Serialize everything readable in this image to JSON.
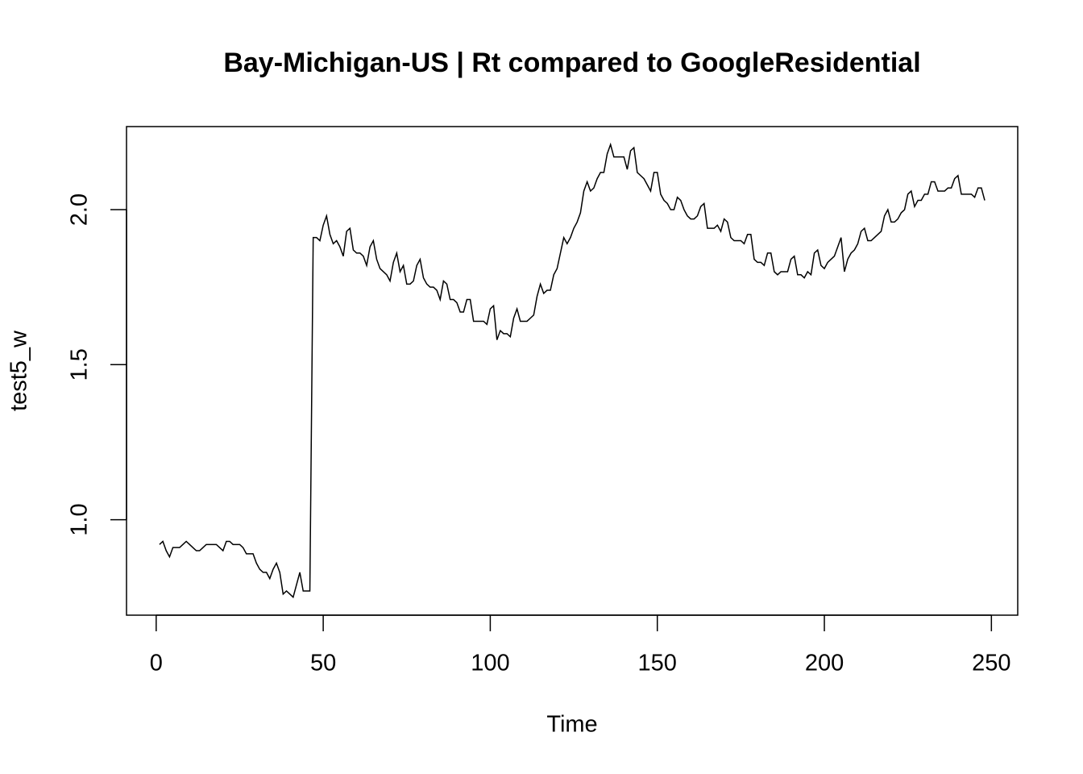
{
  "chart_data": {
    "type": "line",
    "title": "Bay-Michigan-US | Rt compared to GoogleResidential",
    "xlabel": "Time",
    "ylabel": "test5_w",
    "color": "#000000",
    "xlim": [
      -8.88,
      257.88
    ],
    "ylim": [
      0.692,
      2.268
    ],
    "xticks": [
      0,
      50,
      100,
      150,
      200,
      250
    ],
    "yticks": [
      {
        "value": 1.0,
        "label": "1.0"
      },
      {
        "value": 1.5,
        "label": "1.5"
      },
      {
        "value": 2.0,
        "label": "2.0"
      }
    ],
    "x": [
      1,
      2,
      3,
      4,
      5,
      6,
      7,
      8,
      9,
      10,
      11,
      12,
      13,
      14,
      15,
      16,
      17,
      18,
      19,
      20,
      21,
      22,
      23,
      24,
      25,
      26,
      27,
      28,
      29,
      30,
      31,
      32,
      33,
      34,
      35,
      36,
      37,
      38,
      39,
      40,
      41,
      42,
      43,
      44,
      45,
      46,
      47,
      48,
      49,
      50,
      51,
      52,
      53,
      54,
      55,
      56,
      57,
      58,
      59,
      60,
      61,
      62,
      63,
      64,
      65,
      66,
      67,
      68,
      69,
      70,
      71,
      72,
      73,
      74,
      75,
      76,
      77,
      78,
      79,
      80,
      81,
      82,
      83,
      84,
      85,
      86,
      87,
      88,
      89,
      90,
      91,
      92,
      93,
      94,
      95,
      96,
      97,
      98,
      99,
      100,
      101,
      102,
      103,
      104,
      105,
      106,
      107,
      108,
      109,
      110,
      111,
      112,
      113,
      114,
      115,
      116,
      117,
      118,
      119,
      120,
      121,
      122,
      123,
      124,
      125,
      126,
      127,
      128,
      129,
      130,
      131,
      132,
      133,
      134,
      135,
      136,
      137,
      138,
      139,
      140,
      141,
      142,
      143,
      144,
      145,
      146,
      147,
      148,
      149,
      150,
      151,
      152,
      153,
      154,
      155,
      156,
      157,
      158,
      159,
      160,
      161,
      162,
      163,
      164,
      165,
      166,
      167,
      168,
      169,
      170,
      171,
      172,
      173,
      174,
      175,
      176,
      177,
      178,
      179,
      180,
      181,
      182,
      183,
      184,
      185,
      186,
      187,
      188,
      189,
      190,
      191,
      192,
      193,
      194,
      195,
      196,
      197,
      198,
      199,
      200,
      201,
      202,
      203,
      204,
      205,
      206,
      207,
      208,
      209,
      210,
      211,
      212,
      213,
      214,
      215,
      216,
      217,
      218,
      219,
      220,
      221,
      222,
      223,
      224,
      225,
      226,
      227,
      228,
      229,
      230,
      231,
      232,
      233,
      234,
      235,
      236,
      237,
      238,
      239,
      240,
      241,
      242,
      243,
      244,
      245,
      246,
      247,
      248
    ],
    "values": [
      0.92,
      0.93,
      0.9,
      0.88,
      0.91,
      0.91,
      0.91,
      0.92,
      0.93,
      0.92,
      0.91,
      0.9,
      0.9,
      0.91,
      0.92,
      0.92,
      0.92,
      0.92,
      0.91,
      0.9,
      0.93,
      0.93,
      0.92,
      0.92,
      0.92,
      0.91,
      0.89,
      0.89,
      0.89,
      0.86,
      0.84,
      0.83,
      0.83,
      0.81,
      0.84,
      0.86,
      0.83,
      0.76,
      0.77,
      0.76,
      0.75,
      0.79,
      0.83,
      0.77,
      0.77,
      0.77,
      1.91,
      1.91,
      1.9,
      1.95,
      1.98,
      1.92,
      1.89,
      1.9,
      1.88,
      1.85,
      1.93,
      1.94,
      1.87,
      1.86,
      1.86,
      1.85,
      1.82,
      1.88,
      1.9,
      1.84,
      1.81,
      1.8,
      1.79,
      1.77,
      1.83,
      1.86,
      1.8,
      1.82,
      1.76,
      1.76,
      1.77,
      1.82,
      1.84,
      1.78,
      1.76,
      1.75,
      1.75,
      1.74,
      1.71,
      1.77,
      1.76,
      1.71,
      1.71,
      1.7,
      1.67,
      1.67,
      1.71,
      1.71,
      1.64,
      1.64,
      1.64,
      1.64,
      1.63,
      1.68,
      1.69,
      1.58,
      1.61,
      1.6,
      1.6,
      1.59,
      1.65,
      1.68,
      1.64,
      1.64,
      1.64,
      1.65,
      1.66,
      1.72,
      1.76,
      1.73,
      1.74,
      1.74,
      1.79,
      1.81,
      1.86,
      1.91,
      1.89,
      1.91,
      1.94,
      1.96,
      1.99,
      2.06,
      2.09,
      2.06,
      2.07,
      2.1,
      2.12,
      2.12,
      2.18,
      2.21,
      2.17,
      2.17,
      2.17,
      2.17,
      2.13,
      2.19,
      2.2,
      2.12,
      2.11,
      2.1,
      2.08,
      2.06,
      2.12,
      2.12,
      2.05,
      2.03,
      2.02,
      2.0,
      2.0,
      2.04,
      2.03,
      2.0,
      1.98,
      1.97,
      1.97,
      1.98,
      2.01,
      2.02,
      1.94,
      1.94,
      1.94,
      1.95,
      1.93,
      1.97,
      1.96,
      1.91,
      1.9,
      1.9,
      1.9,
      1.89,
      1.92,
      1.92,
      1.84,
      1.83,
      1.83,
      1.82,
      1.86,
      1.86,
      1.8,
      1.79,
      1.8,
      1.8,
      1.8,
      1.84,
      1.85,
      1.79,
      1.79,
      1.78,
      1.8,
      1.79,
      1.86,
      1.87,
      1.82,
      1.81,
      1.83,
      1.84,
      1.85,
      1.88,
      1.91,
      1.8,
      1.84,
      1.86,
      1.87,
      1.89,
      1.93,
      1.94,
      1.9,
      1.9,
      1.91,
      1.92,
      1.93,
      1.98,
      2.0,
      1.96,
      1.96,
      1.97,
      1.99,
      2.0,
      2.05,
      2.06,
      2.01,
      2.03,
      2.03,
      2.05,
      2.05,
      2.09,
      2.09,
      2.06,
      2.06,
      2.06,
      2.07,
      2.07,
      2.1,
      2.11,
      2.05,
      2.05,
      2.05,
      2.05,
      2.04,
      2.07,
      2.07,
      2.03
    ]
  }
}
